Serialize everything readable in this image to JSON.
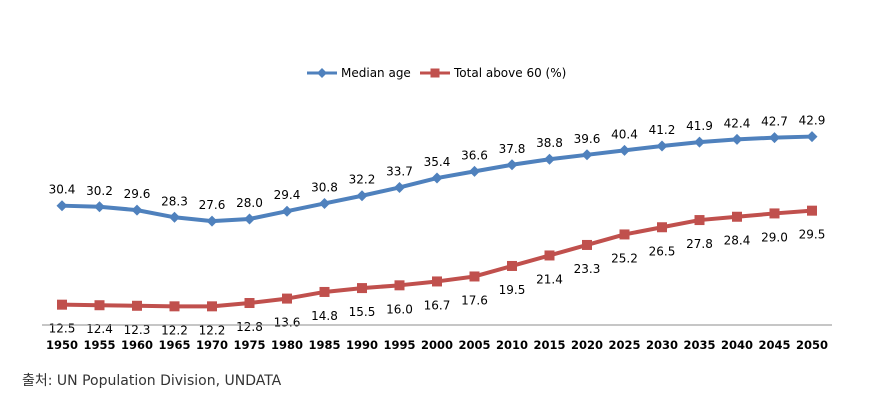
{
  "source": "출처: UN Population Division, UNDATA",
  "chart_data": {
    "type": "line",
    "title": "",
    "xlabel": "",
    "ylabel": "",
    "legend_position": "top-center",
    "grid": false,
    "categories": [
      "1950",
      "1955",
      "1960",
      "1965",
      "1970",
      "1975",
      "1980",
      "1985",
      "1990",
      "1995",
      "2000",
      "2005",
      "2010",
      "2015",
      "2020",
      "2025",
      "2030",
      "2035",
      "2040",
      "2045",
      "2050"
    ],
    "series": [
      {
        "name": "Median age",
        "color": "#4F81BD",
        "marker": "diamond",
        "values": [
          30.4,
          30.2,
          29.6,
          28.3,
          27.6,
          28.0,
          29.4,
          30.8,
          32.2,
          33.7,
          35.4,
          36.6,
          37.8,
          38.8,
          39.6,
          40.4,
          41.2,
          41.9,
          42.4,
          42.7,
          42.9
        ],
        "labels": [
          "30.4",
          "30.2",
          "29.6",
          "28.3",
          "27.6",
          "28.0",
          "29.4",
          "30.8",
          "32.2",
          "33.7",
          "35.4",
          "36.6",
          "37.8",
          "38.8",
          "39.6",
          "40.4",
          "41.2",
          "41.9",
          "42.4",
          "42.7",
          "42.9"
        ]
      },
      {
        "name": "Total above 60 (%)",
        "color": "#C0504D",
        "marker": "square",
        "values": [
          12.5,
          12.4,
          12.3,
          12.2,
          12.2,
          12.8,
          13.6,
          14.8,
          15.5,
          16.0,
          16.7,
          17.6,
          19.5,
          21.4,
          23.3,
          25.2,
          26.5,
          27.8,
          28.4,
          29.0,
          29.5
        ],
        "labels": [
          "12.5",
          "12.4",
          "12.3",
          "12.2",
          "12.2",
          "12.8",
          "13.6",
          "14.8",
          "15.5",
          "16.0",
          "16.7",
          "17.6",
          "19.5",
          "21.4",
          "23.3",
          "25.2",
          "26.5",
          "27.8",
          "28.4",
          "29.0",
          "29.5"
        ]
      }
    ]
  }
}
